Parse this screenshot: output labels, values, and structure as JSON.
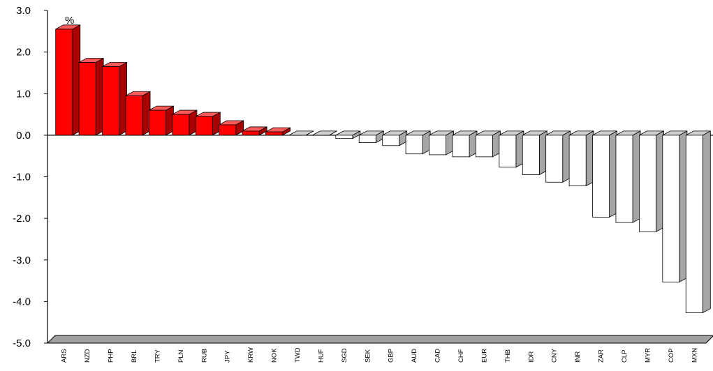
{
  "chart_data": {
    "type": "bar",
    "unit": "%",
    "categories": [
      "ARS",
      "NZD",
      "PHP",
      "BRL",
      "TRY",
      "PLN",
      "RUB",
      "JPY",
      "KRW",
      "NOK",
      "TWD",
      "HUF",
      "SGD",
      "SEK",
      "GBP",
      "AUD",
      "CAD",
      "CHF",
      "EUR",
      "THB",
      "IDR",
      "CNY",
      "INR",
      "ZAR",
      "CLP",
      "MYR",
      "COP",
      "MXN"
    ],
    "values": [
      2.55,
      1.75,
      1.65,
      0.95,
      0.6,
      0.5,
      0.45,
      0.25,
      0.1,
      0.08,
      0.0,
      0.0,
      -0.08,
      -0.18,
      -0.25,
      -0.45,
      -0.47,
      -0.52,
      -0.52,
      -0.77,
      -0.95,
      -1.13,
      -1.22,
      -1.97,
      -2.1,
      -2.32,
      -3.53,
      -4.27
    ],
    "ylim": [
      -5.0,
      3.0
    ],
    "y_ticks": [
      "3.0",
      "2.0",
      "1.0",
      "0.0",
      "-1.0",
      "-2.0",
      "-3.0",
      "-4.0",
      "-5.0"
    ],
    "y_tick_values": [
      3,
      2,
      1,
      0,
      -1,
      -2,
      -3,
      -4,
      -5
    ],
    "grid": false,
    "colors": {
      "positive_front": "#ff0000",
      "positive_top": "#ff5a5a",
      "positive_side": "#a80000",
      "negative_front": "#ffffff",
      "negative_top": "#cfcfcf",
      "negative_side": "#a6a6a6",
      "floor": "#a0a0a0",
      "outline": "#000000"
    }
  }
}
